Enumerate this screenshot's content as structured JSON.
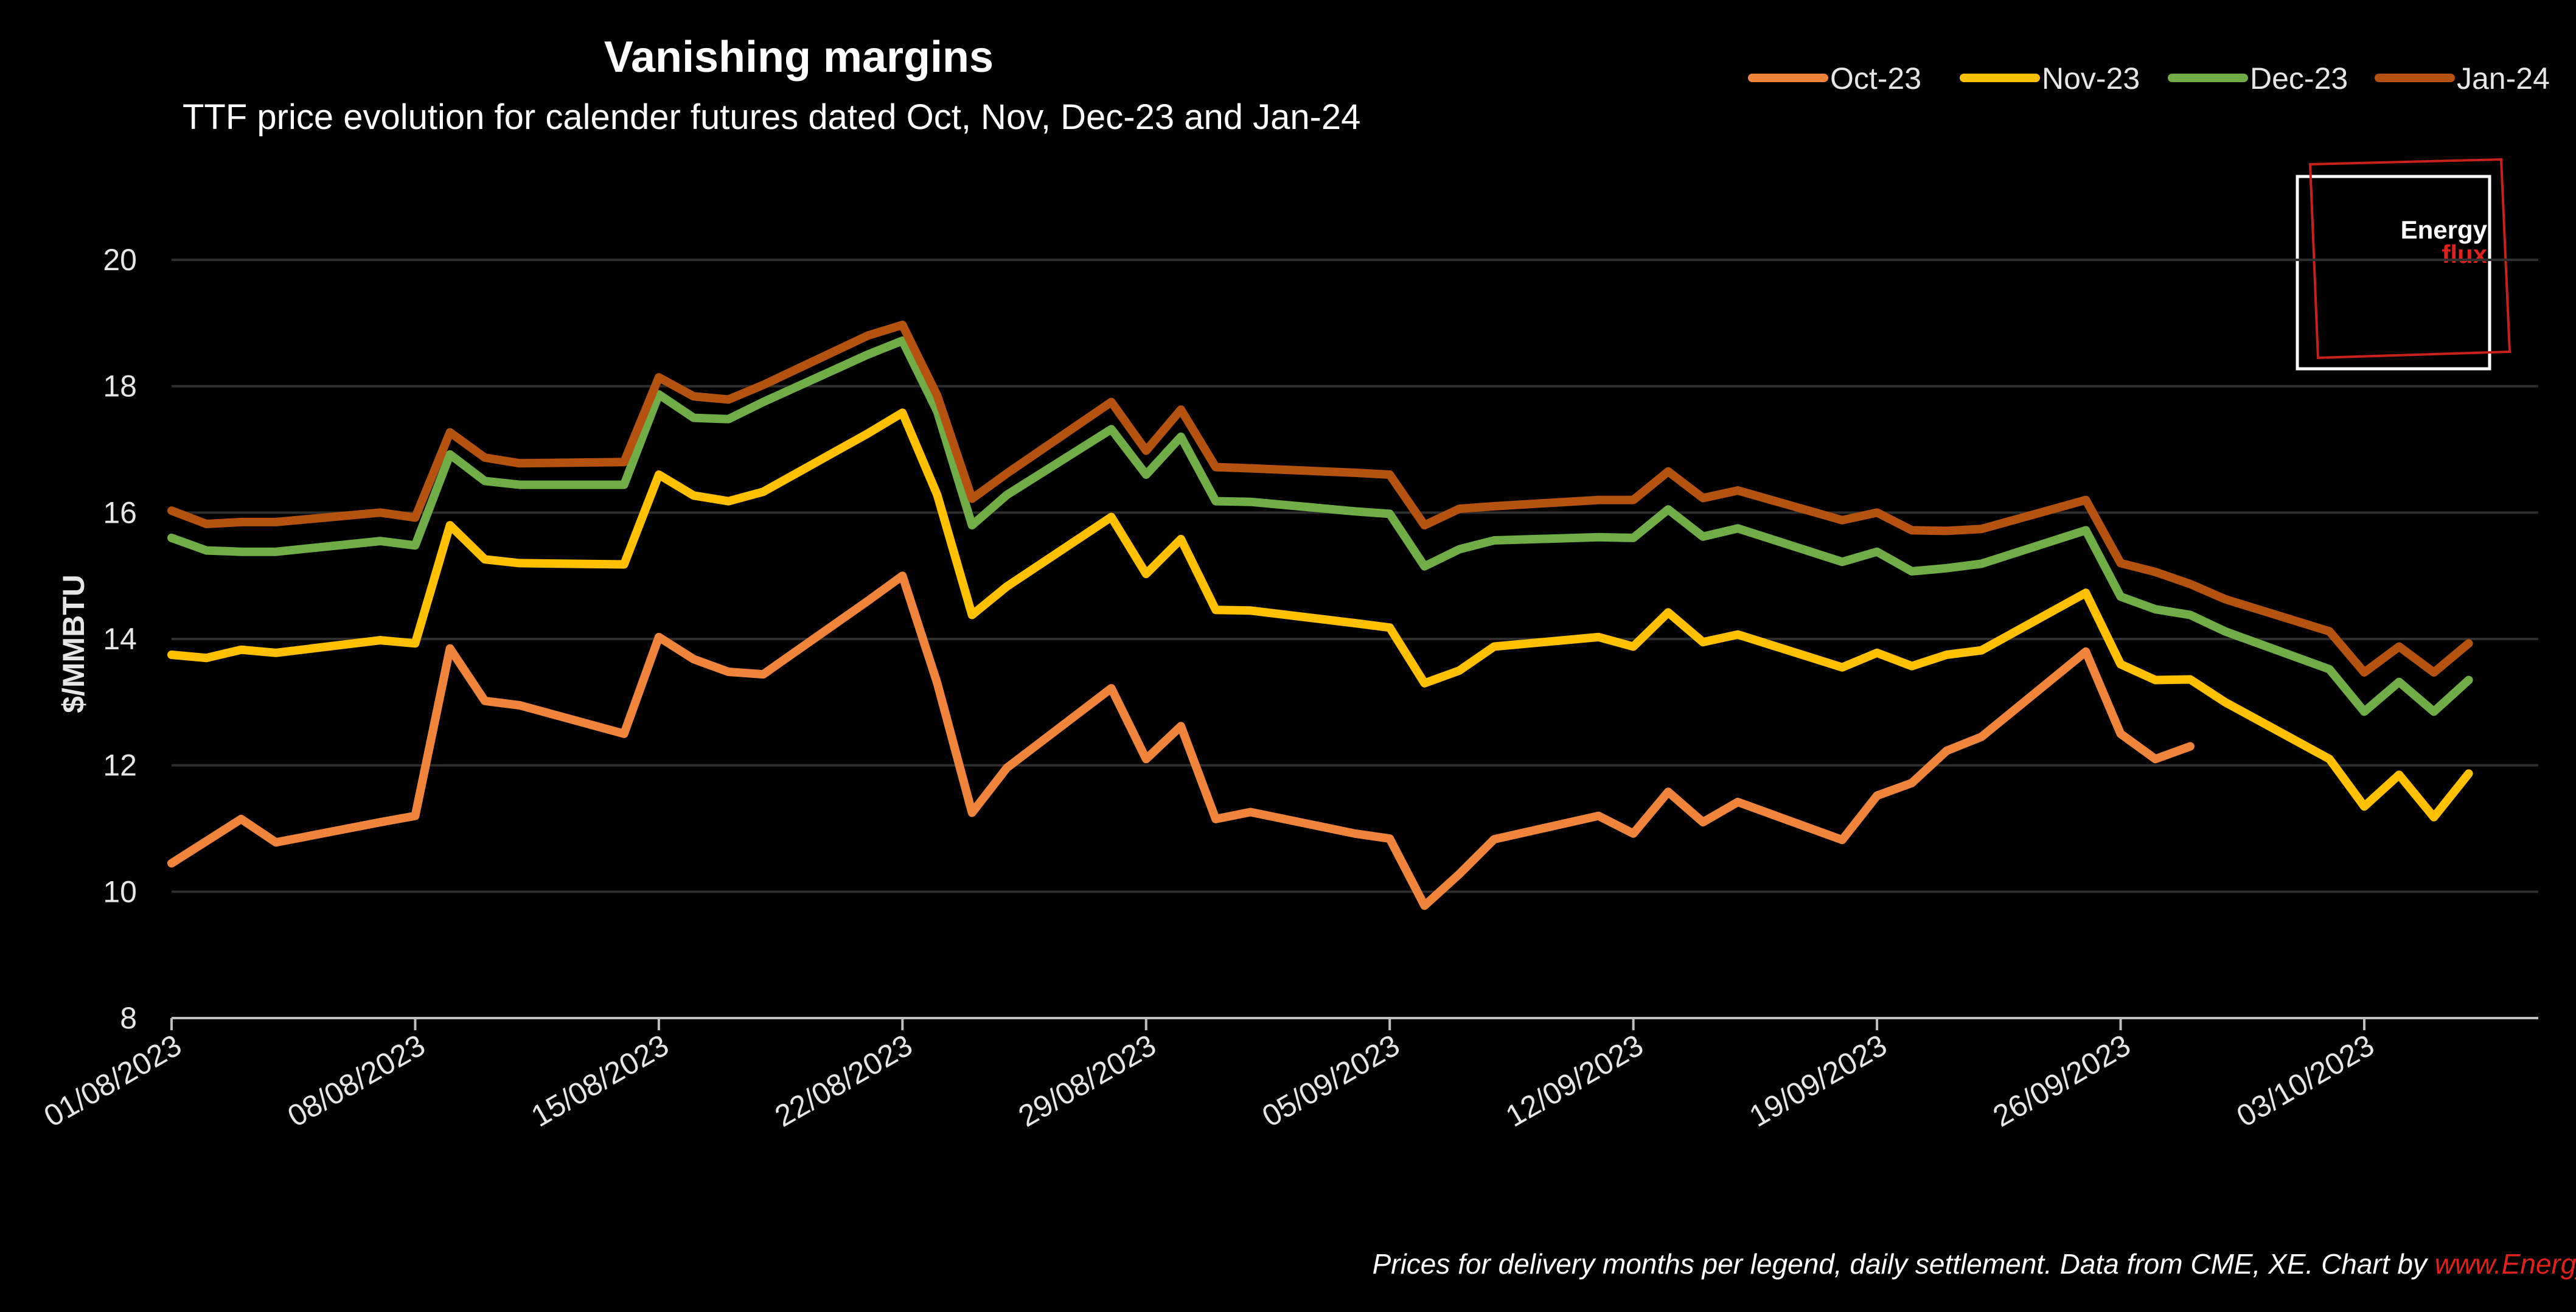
{
  "chart_data": {
    "type": "line",
    "title": "Vanishing margins",
    "subtitle": "TTF price evolution for calender futures dated Oct, Nov, Dec-23 and Jan-24",
    "ylabel": "$/MMBTU",
    "xlabel": "",
    "ylim": [
      8,
      20
    ],
    "yticks": [
      8,
      10,
      12,
      14,
      16,
      18,
      20
    ],
    "xlim": [
      "2023-08-01",
      "2023-10-08"
    ],
    "xticks": [
      "01/08/2023",
      "08/08/2023",
      "15/08/2023",
      "22/08/2023",
      "29/08/2023",
      "05/09/2023",
      "12/09/2023",
      "19/09/2023",
      "26/09/2023",
      "03/10/2023"
    ],
    "grid": "horizontal",
    "legend_position": "top-right",
    "x": [
      "2023-08-01",
      "2023-08-02",
      "2023-08-03",
      "2023-08-04",
      "2023-08-07",
      "2023-08-08",
      "2023-08-09",
      "2023-08-10",
      "2023-08-11",
      "2023-08-14",
      "2023-08-15",
      "2023-08-16",
      "2023-08-17",
      "2023-08-18",
      "2023-08-21",
      "2023-08-22",
      "2023-08-23",
      "2023-08-24",
      "2023-08-25",
      "2023-08-28",
      "2023-08-29",
      "2023-08-30",
      "2023-08-31",
      "2023-09-01",
      "2023-09-04",
      "2023-09-05",
      "2023-09-06",
      "2023-09-07",
      "2023-09-08",
      "2023-09-11",
      "2023-09-12",
      "2023-09-13",
      "2023-09-14",
      "2023-09-15",
      "2023-09-18",
      "2023-09-19",
      "2023-09-20",
      "2023-09-21",
      "2023-09-22",
      "2023-09-25",
      "2023-09-26",
      "2023-09-27",
      "2023-09-28",
      "2023-09-29",
      "2023-10-02",
      "2023-10-03",
      "2023-10-04",
      "2023-10-05",
      "2023-10-06"
    ],
    "series": [
      {
        "name": "Oct-23",
        "color": "#f0843a",
        "values": [
          10.45,
          10.8,
          11.15,
          10.78,
          11.1,
          11.2,
          13.85,
          13.02,
          12.95,
          12.5,
          14.03,
          13.68,
          13.48,
          13.44,
          14.6,
          15.0,
          13.3,
          11.25,
          11.96,
          13.22,
          12.1,
          12.62,
          11.15,
          11.26,
          10.92,
          10.84,
          9.78,
          10.28,
          10.83,
          11.2,
          10.92,
          11.58,
          11.1,
          11.42,
          10.82,
          11.52,
          11.72,
          12.23,
          12.45,
          13.8,
          12.5,
          12.1,
          12.3,
          null,
          null,
          null,
          null,
          null,
          null
        ]
      },
      {
        "name": "Nov-23",
        "color": "#ffc000",
        "values": [
          13.75,
          13.7,
          13.83,
          13.78,
          13.98,
          13.93,
          15.8,
          15.26,
          15.2,
          15.18,
          16.6,
          16.27,
          16.18,
          16.33,
          17.25,
          17.58,
          16.28,
          14.38,
          14.83,
          15.93,
          15.03,
          15.58,
          14.46,
          14.45,
          14.25,
          14.18,
          13.3,
          13.5,
          13.88,
          14.03,
          13.88,
          14.42,
          13.95,
          14.07,
          13.55,
          13.78,
          13.57,
          13.75,
          13.82,
          14.73,
          13.6,
          13.35,
          13.36,
          13.0,
          12.1,
          11.35,
          11.85,
          11.18,
          11.87
        ]
      },
      {
        "name": "Dec-23",
        "color": "#70ad47",
        "values": [
          15.6,
          15.4,
          15.38,
          15.38,
          15.55,
          15.48,
          16.92,
          16.5,
          16.44,
          16.44,
          17.87,
          17.5,
          17.48,
          17.75,
          18.5,
          18.72,
          17.6,
          15.8,
          16.28,
          17.32,
          16.6,
          17.2,
          16.18,
          16.17,
          16.02,
          15.98,
          15.15,
          15.42,
          15.56,
          15.61,
          15.6,
          16.05,
          15.62,
          15.75,
          15.22,
          15.38,
          15.07,
          15.12,
          15.19,
          15.72,
          14.67,
          14.47,
          14.38,
          14.12,
          13.52,
          12.85,
          13.32,
          12.85,
          13.35
        ]
      },
      {
        "name": "Jan-24",
        "color": "#b5520f",
        "values": [
          16.03,
          15.82,
          15.85,
          15.85,
          16.0,
          15.92,
          17.27,
          16.87,
          16.78,
          16.8,
          18.14,
          17.84,
          17.79,
          18.02,
          18.8,
          18.97,
          17.85,
          16.22,
          16.62,
          17.75,
          16.98,
          17.63,
          16.72,
          16.7,
          16.63,
          16.6,
          15.8,
          16.06,
          16.1,
          16.2,
          16.2,
          16.65,
          16.23,
          16.35,
          15.88,
          16.0,
          15.72,
          15.71,
          15.74,
          16.2,
          15.2,
          15.06,
          14.87,
          14.63,
          14.12,
          13.47,
          13.88,
          13.47,
          13.93
        ]
      }
    ],
    "footer_text": "Prices for delivery months per legend, daily settlement. Data from CME, XE. Chart by ",
    "footer_link": "www.EnergyFlux.news"
  },
  "logo": {
    "line1": "Energy",
    "line2": "flux",
    "accent_color": "#e0201b"
  },
  "colors": {
    "background": "#000000",
    "grid": "#2e2e2e",
    "axis": "#bfbfbf",
    "text": "#e6e6e6"
  }
}
